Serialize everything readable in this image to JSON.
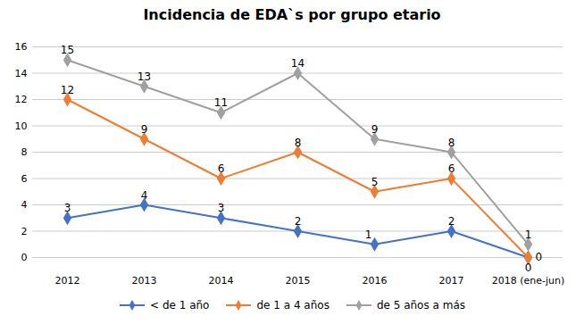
{
  "chart_data": {
    "type": "line",
    "title": "Incidencia de EDA`s por grupo etario",
    "categories": [
      "2012",
      "2013",
      "2014",
      "2015",
      "2016",
      "2017",
      "2018 (ene-jun)"
    ],
    "series": [
      {
        "name": "< de 1 año",
        "color": "#4472C4",
        "marker": "diamond",
        "values": [
          3,
          4,
          3,
          2,
          1,
          2,
          0
        ]
      },
      {
        "name": "de 1 a 4 años",
        "color": "#ED7D31",
        "marker": "diamond",
        "values": [
          12,
          9,
          6,
          8,
          5,
          6,
          0
        ]
      },
      {
        "name": "de 5 años a más",
        "color": "#A0A0A0",
        "marker": "diamond",
        "values": [
          15,
          13,
          11,
          14,
          9,
          8,
          1
        ]
      }
    ],
    "ylim": [
      0,
      16
    ],
    "yticks": [
      0,
      2,
      4,
      6,
      8,
      10,
      12,
      14,
      16
    ],
    "grid": true,
    "data_labels": true,
    "legend": "bottom"
  }
}
